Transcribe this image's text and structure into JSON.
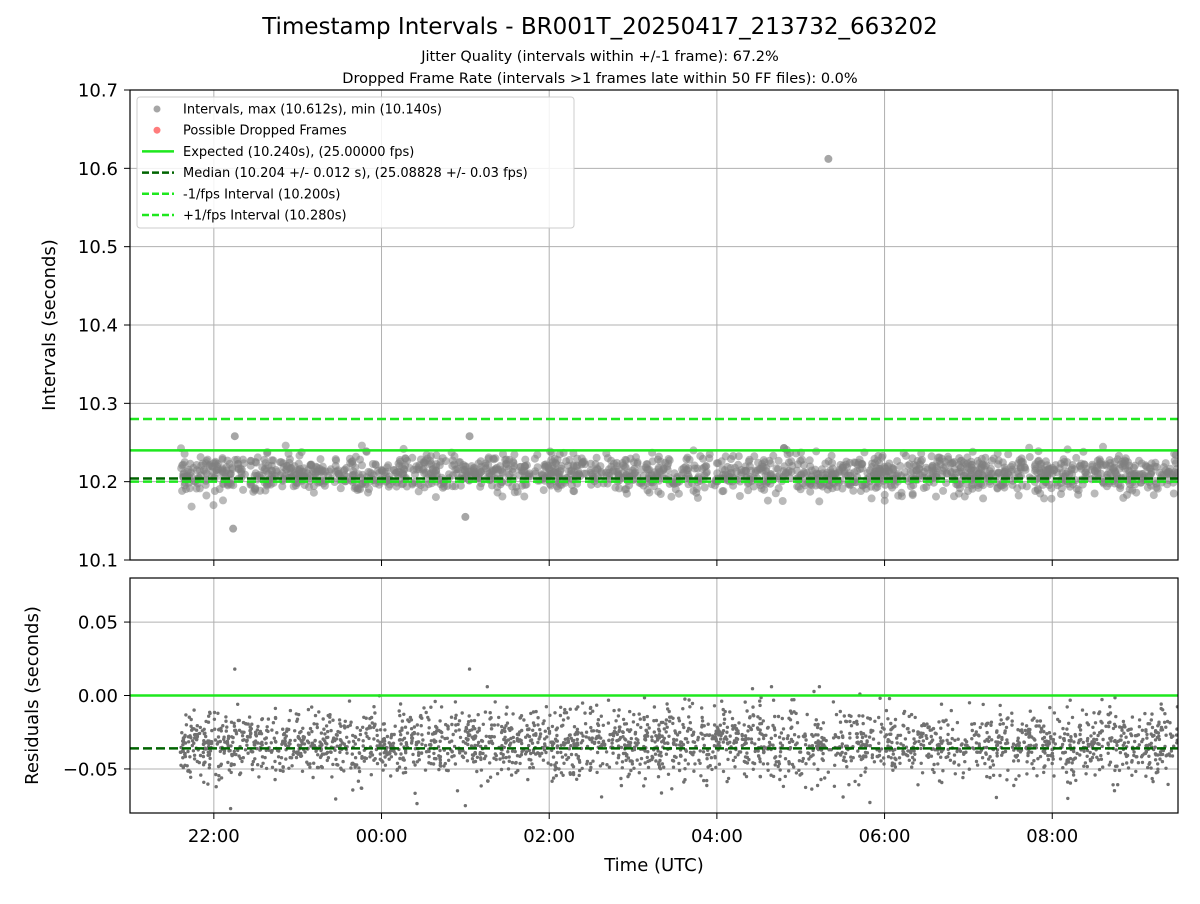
{
  "figure": {
    "title": "Timestamp Intervals - BR001T_20250417_213732_663202",
    "subtitle_1": "Jitter Quality (intervals within +/-1 frame): 67.2%",
    "subtitle_2": "Dropped Frame Rate (intervals >1 frames late within 50 FF files): 0.0%"
  },
  "chart_data": [
    {
      "type": "scatter",
      "ylabel": "Intervals (seconds)",
      "xlim_hours": [
        21.0,
        33.5
      ],
      "ylim": [
        10.1,
        10.7
      ],
      "yticks": [
        "10.1",
        "10.2",
        "10.3",
        "10.4",
        "10.5",
        "10.6",
        "10.7"
      ],
      "grid": true,
      "legend_position": "top-left",
      "data_range_hours": [
        21.6,
        33.5
      ],
      "scatter_summary": {
        "center": 10.21,
        "spread": 0.012,
        "max": 10.612,
        "min": 10.14
      },
      "outliers": [
        {
          "x": 29.33,
          "y": 10.612
        },
        {
          "x": 22.23,
          "y": 10.14
        },
        {
          "x": 22.25,
          "y": 10.258
        },
        {
          "x": 25.05,
          "y": 10.258
        },
        {
          "x": 25.0,
          "y": 10.155
        },
        {
          "x": 28.8,
          "y": 10.243
        }
      ],
      "hlines": [
        {
          "name": "Expected (10.240s), (25.00000 fps)",
          "y": 10.24,
          "color": "#1ee81e",
          "style": "solid"
        },
        {
          "name": "Median (10.204 +/- 0.012 s), (25.08828 +/- 0.03 fps)",
          "y": 10.204,
          "color": "#006400",
          "style": "dashed"
        },
        {
          "name": "-1/fps Interval (10.200s)",
          "y": 10.2,
          "color": "#1ee81e",
          "style": "dashed"
        },
        {
          "name": "+1/fps Interval (10.280s)",
          "y": 10.28,
          "color": "#1ee81e",
          "style": "dashed"
        }
      ],
      "legend": [
        {
          "label": "Intervals, max (10.612s), min (10.140s)",
          "marker": "circle",
          "color": "#808080"
        },
        {
          "label": "Possible Dropped Frames",
          "marker": "circle",
          "color": "#ff4444"
        },
        {
          "label": "Expected (10.240s), (25.00000 fps)",
          "marker": "line",
          "color": "#1ee81e",
          "style": "solid"
        },
        {
          "label": "Median (10.204 +/- 0.012 s), (25.08828 +/- 0.03 fps)",
          "marker": "line",
          "color": "#006400",
          "style": "dashed"
        },
        {
          "label": "-1/fps Interval (10.200s)",
          "marker": "line",
          "color": "#1ee81e",
          "style": "dashed"
        },
        {
          "label": "+1/fps Interval (10.280s)",
          "marker": "line",
          "color": "#1ee81e",
          "style": "dashed"
        }
      ]
    },
    {
      "type": "scatter",
      "xlabel": "Time (UTC)",
      "ylabel": "Residuals (seconds)",
      "xlim_hours": [
        21.0,
        33.5
      ],
      "ylim": [
        -0.08,
        0.08
      ],
      "yticks": [
        "−0.05",
        "0.00",
        "0.05"
      ],
      "xticks": [
        "22:00",
        "00:00",
        "02:00",
        "04:00",
        "06:00",
        "08:00"
      ],
      "grid": true,
      "data_range_hours": [
        21.6,
        33.5
      ],
      "scatter_summary": {
        "center": -0.033,
        "spread": 0.012,
        "max": 0.018,
        "min": -0.078
      },
      "hlines": [
        {
          "name": "Expected",
          "y": 0.0,
          "color": "#1ee81e",
          "style": "solid"
        },
        {
          "name": "Median",
          "y": -0.036,
          "color": "#006400",
          "style": "dashed"
        }
      ]
    }
  ]
}
